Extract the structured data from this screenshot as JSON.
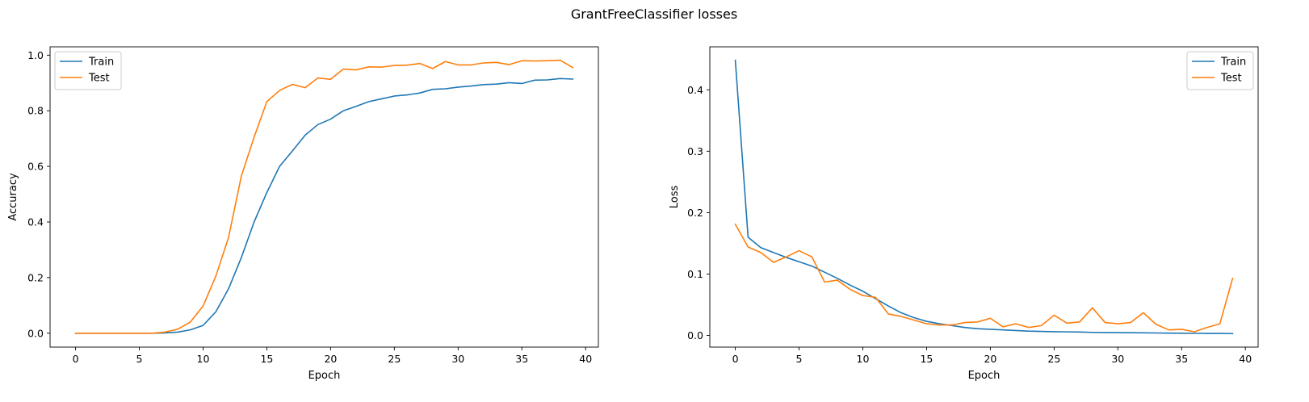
{
  "figure": {
    "suptitle": "GrantFreeClassifier losses"
  },
  "colors": {
    "train": "#1f77b4",
    "test": "#ff7f0e",
    "axes": "#000000",
    "legend_frame": "#cccccc"
  },
  "chart_data": [
    {
      "type": "line",
      "xlabel": "Epoch",
      "ylabel": "Accuracy",
      "xlim": [
        -2,
        41
      ],
      "ylim": [
        -0.05,
        1.03
      ],
      "xticks": [
        0,
        5,
        10,
        15,
        20,
        25,
        30,
        35,
        40
      ],
      "yticks": [
        0.0,
        0.2,
        0.4,
        0.6,
        0.8,
        1.0
      ],
      "xtick_labels": [
        "0",
        "5",
        "10",
        "15",
        "20",
        "25",
        "30",
        "35",
        "40"
      ],
      "ytick_labels": [
        "0.0",
        "0.2",
        "0.4",
        "0.6",
        "0.8",
        "1.0"
      ],
      "legend_position": "upper-left",
      "x": [
        0,
        1,
        2,
        3,
        4,
        5,
        6,
        7,
        8,
        9,
        10,
        11,
        12,
        13,
        14,
        15,
        16,
        17,
        18,
        19,
        20,
        21,
        22,
        23,
        24,
        25,
        26,
        27,
        28,
        29,
        30,
        31,
        32,
        33,
        34,
        35,
        36,
        37,
        38,
        39
      ],
      "series": [
        {
          "name": "Train",
          "color_key": "train",
          "values": [
            0.0,
            0.0,
            0.0,
            0.0,
            0.0,
            0.0,
            0.0,
            0.001,
            0.004,
            0.012,
            0.028,
            0.077,
            0.16,
            0.272,
            0.4,
            0.506,
            0.6,
            0.655,
            0.712,
            0.75,
            0.77,
            0.8,
            0.816,
            0.833,
            0.843,
            0.853,
            0.857,
            0.864,
            0.877,
            0.879,
            0.885,
            0.889,
            0.894,
            0.896,
            0.901,
            0.898,
            0.91,
            0.911,
            0.916,
            0.914
          ]
        },
        {
          "name": "Test",
          "color_key": "test",
          "values": [
            0.0,
            0.0,
            0.0,
            0.0,
            0.0,
            0.0,
            0.0,
            0.004,
            0.014,
            0.04,
            0.098,
            0.205,
            0.345,
            0.565,
            0.705,
            0.833,
            0.873,
            0.895,
            0.883,
            0.918,
            0.913,
            0.95,
            0.947,
            0.958,
            0.957,
            0.963,
            0.964,
            0.97,
            0.952,
            0.977,
            0.965,
            0.965,
            0.972,
            0.974,
            0.966,
            0.98,
            0.979,
            0.98,
            0.982,
            0.955
          ]
        }
      ]
    },
    {
      "type": "line",
      "xlabel": "Epoch",
      "ylabel": "Loss",
      "xlim": [
        -2,
        41
      ],
      "ylim": [
        -0.019,
        0.47
      ],
      "xticks": [
        0,
        5,
        10,
        15,
        20,
        25,
        30,
        35,
        40
      ],
      "yticks": [
        0.0,
        0.1,
        0.2,
        0.3,
        0.4
      ],
      "xtick_labels": [
        "0",
        "5",
        "10",
        "15",
        "20",
        "25",
        "30",
        "35",
        "40"
      ],
      "ytick_labels": [
        "0.0",
        "0.1",
        "0.2",
        "0.3",
        "0.4"
      ],
      "legend_position": "upper-right",
      "x": [
        0,
        1,
        2,
        3,
        4,
        5,
        6,
        7,
        8,
        9,
        10,
        11,
        12,
        13,
        14,
        15,
        16,
        17,
        18,
        19,
        20,
        21,
        22,
        23,
        24,
        25,
        26,
        27,
        28,
        29,
        30,
        31,
        32,
        33,
        34,
        35,
        36,
        37,
        38,
        39
      ],
      "series": [
        {
          "name": "Train",
          "color_key": "train",
          "values": [
            0.448,
            0.16,
            0.143,
            0.135,
            0.127,
            0.12,
            0.113,
            0.103,
            0.093,
            0.082,
            0.072,
            0.06,
            0.048,
            0.037,
            0.029,
            0.023,
            0.019,
            0.016,
            0.013,
            0.011,
            0.01,
            0.009,
            0.008,
            0.007,
            0.0065,
            0.006,
            0.0058,
            0.0055,
            0.005,
            0.0048,
            0.0046,
            0.0044,
            0.0042,
            0.004,
            0.0038,
            0.0036,
            0.0035,
            0.0033,
            0.0032,
            0.003
          ]
        },
        {
          "name": "Test",
          "color_key": "test",
          "values": [
            0.181,
            0.144,
            0.135,
            0.119,
            0.128,
            0.138,
            0.128,
            0.087,
            0.09,
            0.075,
            0.065,
            0.062,
            0.035,
            0.031,
            0.025,
            0.019,
            0.017,
            0.017,
            0.021,
            0.022,
            0.028,
            0.014,
            0.019,
            0.013,
            0.016,
            0.033,
            0.02,
            0.022,
            0.045,
            0.021,
            0.019,
            0.021,
            0.037,
            0.018,
            0.009,
            0.01,
            0.006,
            0.013,
            0.019,
            0.093
          ]
        }
      ]
    }
  ]
}
